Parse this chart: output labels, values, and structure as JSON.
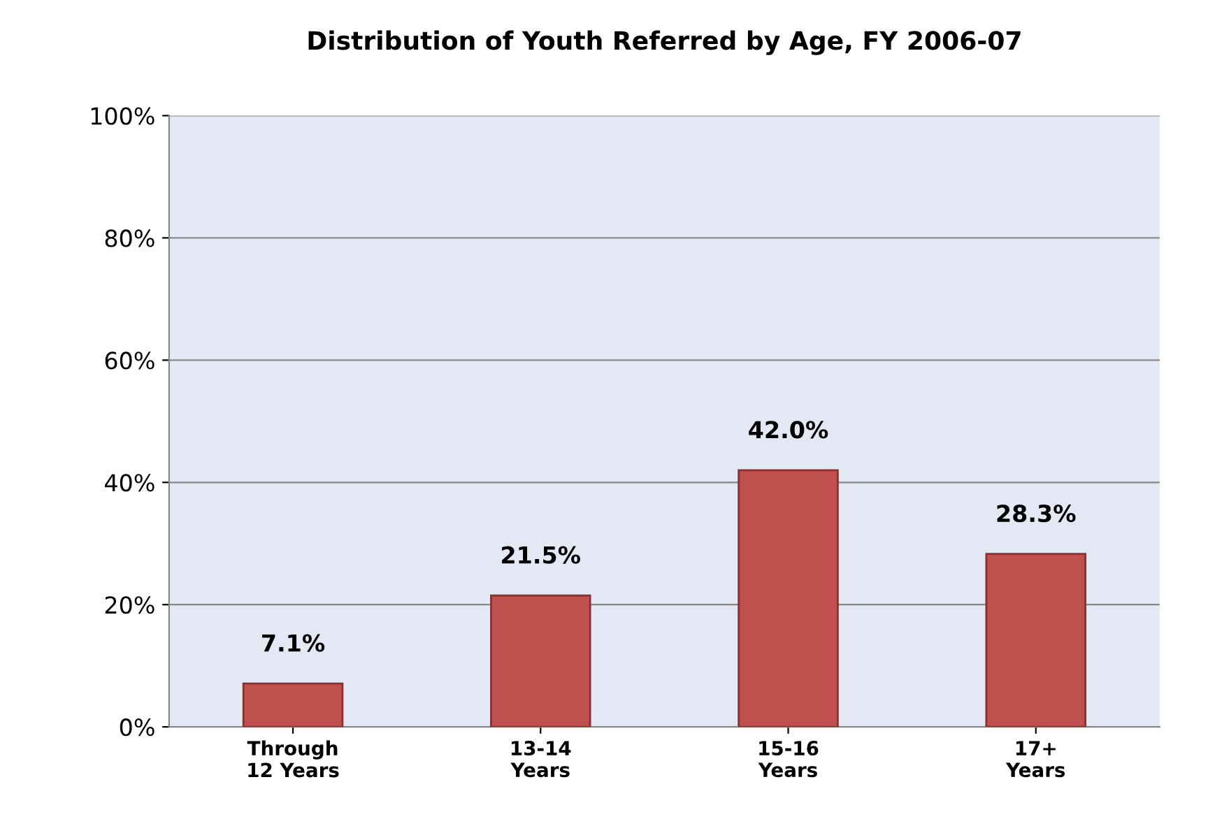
{
  "chart_data": {
    "type": "bar",
    "title": "Distribution of Youth Referred by Age, FY 2006-07",
    "categories": [
      "Through\n12 Years",
      "13-14\nYears",
      "15-16\nYears",
      "17+\nYears"
    ],
    "values": [
      7.1,
      21.5,
      42.0,
      28.3
    ],
    "value_labels": [
      "7.1%",
      "21.5%",
      "42.0%",
      "28.3%"
    ],
    "color": "#c0504d",
    "ylim": [
      0,
      100
    ],
    "yticks": [
      {
        "value": 0,
        "label": "0%"
      },
      {
        "value": 20,
        "label": "20%"
      },
      {
        "value": 40,
        "label": "40%"
      },
      {
        "value": 60,
        "label": "60%"
      },
      {
        "value": 80,
        "label": "80%"
      },
      {
        "value": 100,
        "label": "100%"
      }
    ],
    "grid": "y"
  }
}
